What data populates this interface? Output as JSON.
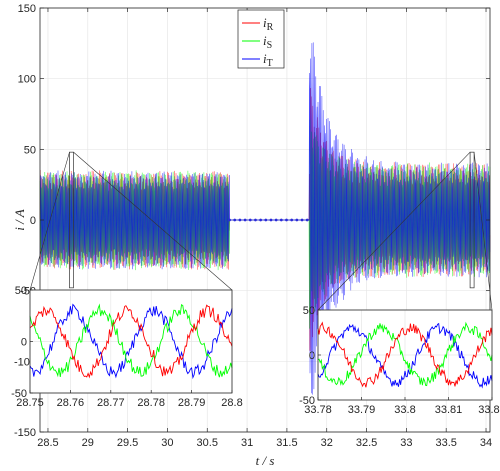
{
  "chart_data": [
    {
      "type": "line",
      "role": "main",
      "xlabel_var": "t",
      "xlabel_unit": "s",
      "ylabel_var": "i",
      "ylabel_unit": "A",
      "xlim": [
        28.4,
        34.05
      ],
      "ylim": [
        -150,
        150
      ],
      "xticks": [
        28.5,
        29,
        29.5,
        30,
        30.5,
        31,
        31.5,
        32,
        32.5,
        33,
        33.5,
        34
      ],
      "xtick_labels": [
        "28.5",
        "29",
        "29.5",
        "30",
        "30.5",
        "31",
        "31.5",
        "32",
        "32.5",
        "33",
        "33.5",
        "34"
      ],
      "yticks": [
        -150,
        -100,
        -50,
        0,
        50,
        100,
        150
      ],
      "ytick_labels": [
        "-150",
        "-100",
        "-50",
        "0",
        "50",
        "100",
        "150"
      ],
      "grid": true,
      "legend_position": "top-center",
      "series": [
        {
          "var": "i",
          "sub": "R",
          "color": "#ff0000"
        },
        {
          "var": "i",
          "sub": "S",
          "color": "#00ff00"
        },
        {
          "var": "i",
          "sub": "T",
          "color": "#0000ff"
        }
      ],
      "phases": [
        {
          "x_start": 28.4,
          "x_end": 30.78,
          "state": "steady",
          "amplitude": 33
        },
        {
          "x_start": 30.78,
          "x_end": 31.78,
          "state": "off",
          "amplitude": 0
        },
        {
          "x_start": 31.78,
          "x_end": 34.05,
          "state": "transient",
          "peak": 148,
          "min": -148,
          "steady_amplitude": 38
        }
      ]
    },
    {
      "type": "line",
      "role": "inset-left",
      "xlim": [
        28.75,
        28.8
      ],
      "ylim": [
        -50,
        50
      ],
      "xticks": [
        28.75,
        28.76,
        28.77,
        28.78,
        28.79,
        28.8
      ],
      "xtick_labels": [
        "28.75",
        "28.76",
        "28.77",
        "28.78",
        "28.79",
        "28.8"
      ],
      "yticks": [
        -50,
        0,
        50
      ],
      "ytick_labels": [
        "-50",
        "0",
        "50"
      ],
      "amplitude": 30,
      "cycles": 2.5
    },
    {
      "type": "line",
      "role": "inset-right",
      "xlim": [
        33.78,
        33.82
      ],
      "ylim": [
        -50,
        50
      ],
      "xticks": [
        33.78,
        33.79,
        33.8,
        33.81,
        33.82
      ],
      "xtick_labels": [
        "33.78",
        "33.79",
        "33.8",
        "33.81",
        "33.82"
      ],
      "yticks": [
        -50,
        0,
        50
      ],
      "ytick_labels": [
        "-50",
        "0",
        "50"
      ],
      "amplitude": 30,
      "cycles": 2
    }
  ]
}
